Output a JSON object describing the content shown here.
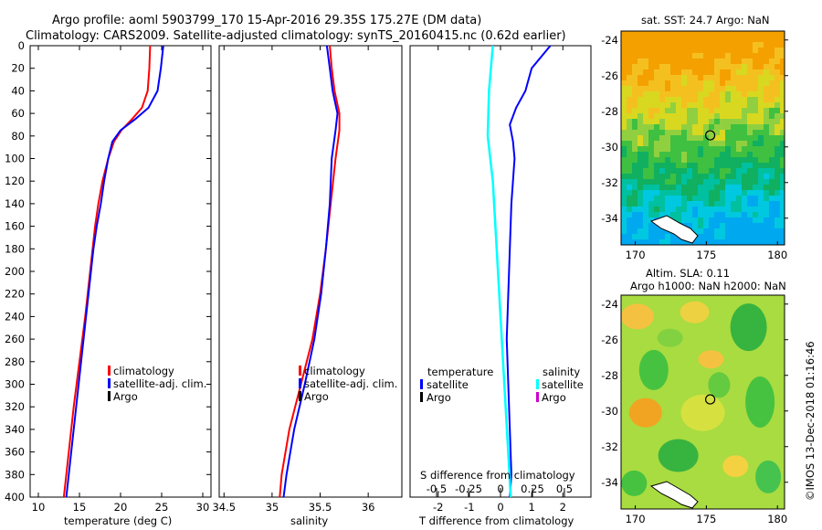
{
  "header": {
    "title_line1": "Argo profile: aoml 5903799_170 15-Apr-2016 29.35S 175.27E (DM data)",
    "title_line2": "Climatology: CARS2009. Satellite-adjusted climatology: synTS_20160415.nc (0.62d earlier)"
  },
  "colors": {
    "climatology": "#ff0000",
    "satellite": "#0000ff",
    "argo": "#000000",
    "salinity_satellite": "#00ffff",
    "salinity_argo": "#cc00cc"
  },
  "chart_data": [
    {
      "type": "line",
      "id": "temperature",
      "xlabel": "temperature (deg C)",
      "ylabel": "",
      "xlim": [
        9,
        31
      ],
      "ylim": [
        0,
        400
      ],
      "xticks": [
        10,
        15,
        20,
        25,
        30
      ],
      "yticks": [
        0,
        20,
        40,
        60,
        80,
        100,
        120,
        140,
        160,
        180,
        200,
        220,
        240,
        260,
        280,
        300,
        320,
        340,
        360,
        380,
        400
      ],
      "legend": [
        "climatology",
        "satellite-adj. clim.",
        "Argo"
      ],
      "series": [
        {
          "name": "climatology",
          "color": "#ff0000",
          "depth": [
            0,
            20,
            40,
            55,
            65,
            75,
            85,
            100,
            120,
            140,
            160,
            180,
            200,
            240,
            280,
            320,
            360,
            400
          ],
          "values": [
            23.6,
            23.5,
            23.3,
            22.6,
            21.4,
            20.1,
            19.2,
            18.5,
            17.8,
            17.3,
            16.9,
            16.6,
            16.3,
            15.7,
            15.0,
            14.3,
            13.7,
            13.1
          ]
        },
        {
          "name": "satellite-adj. clim.",
          "color": "#0000ff",
          "depth": [
            0,
            20,
            40,
            55,
            65,
            75,
            85,
            100,
            120,
            140,
            160,
            180,
            200,
            240,
            280,
            320,
            360,
            400
          ],
          "values": [
            25.2,
            24.9,
            24.5,
            23.4,
            21.8,
            20.0,
            19.0,
            18.5,
            18.0,
            17.6,
            17.1,
            16.7,
            16.4,
            15.8,
            15.2,
            14.6,
            14.0,
            13.4
          ]
        }
      ]
    },
    {
      "type": "line",
      "id": "salinity",
      "xlabel": "salinity",
      "ylabel": "",
      "xlim": [
        34.45,
        36.35
      ],
      "ylim": [
        0,
        400
      ],
      "xticks": [
        34.5,
        35,
        35.5,
        36
      ],
      "legend": [
        "climatology",
        "satellite-adj. clim.",
        "Argo"
      ],
      "series": [
        {
          "name": "climatology",
          "color": "#ff0000",
          "depth": [
            0,
            20,
            40,
            60,
            75,
            100,
            140,
            180,
            220,
            260,
            300,
            340,
            380,
            400
          ],
          "values": [
            35.6,
            35.62,
            35.65,
            35.7,
            35.7,
            35.66,
            35.61,
            35.56,
            35.5,
            35.42,
            35.3,
            35.18,
            35.1,
            35.08
          ]
        },
        {
          "name": "satellite-adj. clim.",
          "color": "#0000ff",
          "depth": [
            0,
            20,
            40,
            60,
            75,
            100,
            140,
            180,
            220,
            260,
            300,
            340,
            380,
            400
          ],
          "values": [
            35.57,
            35.6,
            35.63,
            35.68,
            35.66,
            35.62,
            35.6,
            35.56,
            35.51,
            35.44,
            35.34,
            35.23,
            35.15,
            35.12
          ]
        }
      ]
    },
    {
      "type": "line",
      "id": "difference",
      "xlabel": "T difference from climatology",
      "xlabel2": "S difference from climatology",
      "xlim": [
        -2.9,
        2.9
      ],
      "ylim": [
        0,
        400
      ],
      "xticks": [
        -2,
        -1,
        0,
        1,
        2
      ],
      "sticks": [
        "-0.5",
        "-0.25",
        "0",
        "0.25",
        "0.5"
      ],
      "legend_temperature_header": "temperature",
      "legend_salinity_header": "salinity",
      "legend_temperature": [
        "satellite",
        "Argo"
      ],
      "legend_salinity": [
        "satellite",
        "Argo"
      ],
      "series": [
        {
          "name": "T satellite",
          "color": "#0000ff",
          "depth": [
            0,
            20,
            40,
            55,
            70,
            85,
            100,
            140,
            180,
            220,
            260,
            300,
            340,
            380,
            400
          ],
          "values": [
            1.6,
            1.0,
            0.8,
            0.5,
            0.3,
            0.4,
            0.45,
            0.35,
            0.3,
            0.25,
            0.2,
            0.25,
            0.3,
            0.35,
            0.3
          ]
        },
        {
          "name": "S satellite",
          "color": "#00ffff",
          "depth": [
            0,
            40,
            80,
            120,
            160,
            200,
            240,
            280,
            320,
            360,
            400
          ],
          "values": [
            -0.06,
            -0.09,
            -0.1,
            -0.06,
            -0.04,
            -0.02,
            0.0,
            0.02,
            0.04,
            0.06,
            0.08
          ]
        }
      ]
    },
    {
      "type": "heatmap",
      "id": "sst",
      "title": "sat. SST: 24.7 Argo: NaN",
      "xticks": [
        170,
        175,
        180
      ],
      "yticks": [
        -24,
        -26,
        -28,
        -30,
        -32,
        -34
      ],
      "xlim": [
        169,
        180.5
      ],
      "ylim": [
        -35.5,
        -23.5
      ],
      "argo_position": [
        175.27,
        -29.35
      ]
    },
    {
      "type": "heatmap",
      "id": "sla",
      "title_line1": "Altim. SLA: 0.11",
      "title_line2": "Argo h1000: NaN h2000: NaN",
      "xticks": [
        170,
        175,
        180
      ],
      "yticks": [
        -24,
        -26,
        -28,
        -30,
        -32,
        -34
      ],
      "xlim": [
        169,
        180.5
      ],
      "ylim": [
        -35.5,
        -23.5
      ],
      "argo_position": [
        175.27,
        -29.35
      ]
    }
  ],
  "footer": {
    "credit": "©IMOS 13-Dec-2018 01:16:46"
  }
}
